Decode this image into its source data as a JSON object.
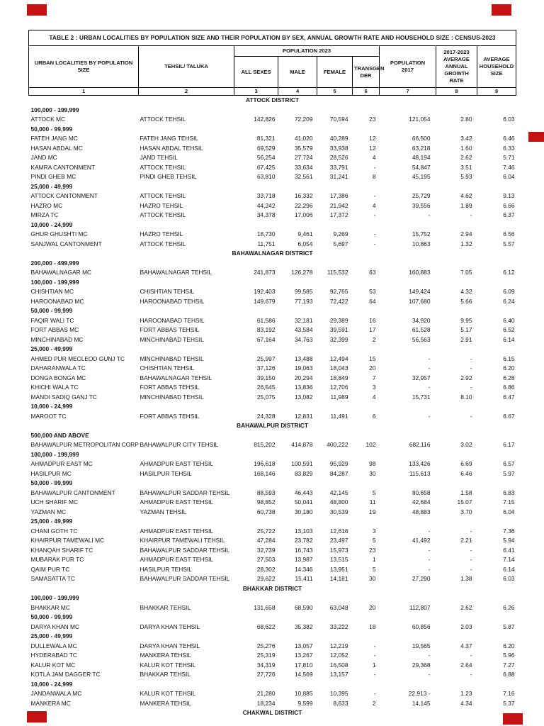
{
  "decorations": {
    "redaction_color": "#c51212"
  },
  "table": {
    "title": "TABLE 2 : URBAN LOCALITIES BY POPULATION SIZE AND THEIR POPULATION BY SEX, ANNUAL GROWTH RATE AND HOUSEHOLD SIZE : CENSUS-2023",
    "header": {
      "locality": "URBAN LOCALITIES BY POPULATION SIZE",
      "tehsil": "TEHSIL/ TALUKA",
      "pop2023": "POPULATION 2023",
      "all_sexes": "ALL SEXES",
      "male": "MALE",
      "female": "FEMALE",
      "transgender": "TRANSGEN DER",
      "pop2017": "POPULATION 2017",
      "growth": "2017-2023 AVERAGE ANNUAL GROWTH RATE",
      "household": "AVERAGE HOUSEHOLD SIZE"
    },
    "col_numbers": [
      "1",
      "2",
      "3",
      "4",
      "5",
      "6",
      "7",
      "8",
      "9"
    ],
    "rows": [
      {
        "type": "district",
        "label": "ATTOCK DISTRICT"
      },
      {
        "type": "group",
        "label": "100,000 - 199,999"
      },
      {
        "type": "data",
        "name": "ATTOCK MC",
        "tehsil": "ATTOCK TEHSIL",
        "all": "142,826",
        "male": "72,209",
        "female": "70,594",
        "trans": "23",
        "pop2017": "121,054",
        "growth": "2.80",
        "hh": "6.03"
      },
      {
        "type": "group",
        "label": "50,000 - 99,999"
      },
      {
        "type": "data",
        "name": "FATEH JANG MC",
        "tehsil": "FATEH JANG TEHSIL",
        "all": "81,321",
        "male": "41,020",
        "female": "40,289",
        "trans": "12",
        "pop2017": "66,500",
        "growth": "3.42",
        "hh": "6.46"
      },
      {
        "type": "data",
        "name": "HASAN ABDAL MC",
        "tehsil": "HASAN ABDAL TEHSIL",
        "all": "69,529",
        "male": "35,579",
        "female": "33,938",
        "trans": "12",
        "pop2017": "63,218",
        "growth": "1.60",
        "hh": "6.33"
      },
      {
        "type": "data",
        "name": "JAND MC",
        "tehsil": "JAND TEHSIL",
        "all": "56,254",
        "male": "27,724",
        "female": "28,526",
        "trans": "4",
        "pop2017": "48,194",
        "growth": "2.62",
        "hh": "5.71"
      },
      {
        "type": "data",
        "name": "KAMRA CANTONMENT",
        "tehsil": "ATTOCK TEHSIL",
        "all": "67,425",
        "male": "33,634",
        "female": "33,791",
        "trans": "-",
        "pop2017": "54,847",
        "growth": "3.51",
        "hh": "7.46"
      },
      {
        "type": "data",
        "name": "PINDI GHEB MC",
        "tehsil": "PINDI GHEB TEHSIL",
        "all": "63,810",
        "male": "32,561",
        "female": "31,241",
        "trans": "8",
        "pop2017": "45,195",
        "growth": "5.93",
        "hh": "6.04"
      },
      {
        "type": "group",
        "label": "25,000 - 49,999"
      },
      {
        "type": "data",
        "name": "ATTOCK CANTONMENT",
        "tehsil": "ATTOCK TEHSIL",
        "all": "33,718",
        "male": "16,332",
        "female": "17,386",
        "trans": "-",
        "pop2017": "25,729",
        "growth": "4.62",
        "hh": "9.13"
      },
      {
        "type": "data",
        "name": "HAZRO MC",
        "tehsil": "HAZRO TEHSIL",
        "all": "44,242",
        "male": "22,296",
        "female": "21,942",
        "trans": "4",
        "pop2017": "39,556",
        "growth": "1.89",
        "hh": "6.66"
      },
      {
        "type": "data",
        "name": "MIRZA TC",
        "tehsil": "ATTOCK TEHSIL",
        "all": "34,378",
        "male": "17,006",
        "female": "17,372",
        "trans": "-",
        "pop2017": "-",
        "growth": "-",
        "hh": "6.37"
      },
      {
        "type": "group",
        "label": "10,000 - 24,999"
      },
      {
        "type": "data",
        "name": "GHUR GHUSHTI MC",
        "tehsil": "HAZRO TEHSIL",
        "all": "18,730",
        "male": "9,461",
        "female": "9,269",
        "trans": "-",
        "pop2017": "15,752",
        "growth": "2.94",
        "hh": "6.56"
      },
      {
        "type": "data",
        "name": "SANJWAL CANTONMENT",
        "tehsil": "ATTOCK TEHSIL",
        "all": "11,751",
        "male": "6,054",
        "female": "5,697",
        "trans": "-",
        "pop2017": "10,863",
        "growth": "1.32",
        "hh": "5.57"
      },
      {
        "type": "district",
        "label": "BAHAWALNAGAR DISTRICT"
      },
      {
        "type": "group",
        "label": "200,000 - 499,999"
      },
      {
        "type": "data",
        "name": "BAHAWALNAGAR MC",
        "tehsil": "BAHAWALNAGAR TEHSIL",
        "all": "241,873",
        "male": "126,278",
        "female": "115,532",
        "trans": "63",
        "pop2017": "160,883",
        "growth": "7.05",
        "hh": "6.12"
      },
      {
        "type": "group",
        "label": "100,000 - 199,999"
      },
      {
        "type": "data",
        "name": "CHISHTIAN MC",
        "tehsil": "CHISHTIAN TEHSIL",
        "all": "192,403",
        "male": "99,585",
        "female": "92,765",
        "trans": "53",
        "pop2017": "149,424",
        "growth": "4.32",
        "hh": "6.09"
      },
      {
        "type": "data",
        "name": "HAROONABAD MC",
        "tehsil": "HAROONABAD TEHSIL",
        "all": "149,679",
        "male": "77,193",
        "female": "72,422",
        "trans": "64",
        "pop2017": "107,680",
        "growth": "5.66",
        "hh": "6.24"
      },
      {
        "type": "group",
        "label": "50,000 - 99,999"
      },
      {
        "type": "data",
        "name": "FAQIR WALI TC",
        "tehsil": "HAROONABAD TEHSIL",
        "all": "61,586",
        "male": "32,181",
        "female": "29,389",
        "trans": "16",
        "pop2017": "34,920",
        "growth": "9.95",
        "hh": "6.40"
      },
      {
        "type": "data",
        "name": "FORT ABBAS MC",
        "tehsil": "FORT ABBAS TEHSIL",
        "all": "83,192",
        "male": "43,584",
        "female": "39,591",
        "trans": "17",
        "pop2017": "61,528",
        "growth": "5.17",
        "hh": "6.52"
      },
      {
        "type": "data",
        "name": "MINCHINABAD MC",
        "tehsil": "MINCHINABAD TEHSIL",
        "all": "67,164",
        "male": "34,763",
        "female": "32,399",
        "trans": "2",
        "pop2017": "56,563",
        "growth": "2.91",
        "hh": "6.14"
      },
      {
        "type": "group",
        "label": "25,000 - 49,999"
      },
      {
        "type": "data",
        "name": "AHMED PUR MECLEOD GUNJ TC",
        "tehsil": "MINCHINABAD TEHSIL",
        "all": "25,997",
        "male": "13,488",
        "female": "12,494",
        "trans": "15",
        "pop2017": "-",
        "growth": "-",
        "hh": "6.15"
      },
      {
        "type": "data",
        "name": "DAHARANWALA TC",
        "tehsil": "CHISHTIAN TEHSIL",
        "all": "37,126",
        "male": "19,063",
        "female": "18,043",
        "trans": "20",
        "pop2017": "-",
        "growth": "-",
        "hh": "6.20"
      },
      {
        "type": "data",
        "name": "DONGA BONGA MC",
        "tehsil": "BAHAWALNAGAR TEHSIL",
        "all": "39,150",
        "male": "20,294",
        "female": "18,849",
        "trans": "7",
        "pop2017": "32,957",
        "growth": "2.92",
        "hh": "6.28"
      },
      {
        "type": "data",
        "name": "KHICHI WALA TC",
        "tehsil": "FORT ABBAS TEHSIL",
        "all": "26,545",
        "male": "13,836",
        "female": "12,706",
        "trans": "3",
        "pop2017": "-",
        "growth": "-",
        "hh": "6.86"
      },
      {
        "type": "data",
        "name": "MANDI SADIQ GANJ TC",
        "tehsil": "MINCHINABAD TEHSIL",
        "all": "25,075",
        "male": "13,082",
        "female": "11,989",
        "trans": "4",
        "pop2017": "15,731",
        "growth": "8.10",
        "hh": "6.47"
      },
      {
        "type": "group",
        "label": "10,000 - 24,999"
      },
      {
        "type": "data",
        "name": "MAROOT TC",
        "tehsil": "FORT ABBAS TEHSIL",
        "all": "24,328",
        "male": "12,831",
        "female": "11,491",
        "trans": "6",
        "pop2017": "-",
        "growth": "-",
        "hh": "6.67"
      },
      {
        "type": "district",
        "label": "BAHAWALPUR DISTRICT"
      },
      {
        "type": "group",
        "label": "500,000 AND ABOVE"
      },
      {
        "type": "data",
        "name": "BAHAWALPUR METROPOLITAN CORPOR",
        "tehsil": "BAHAWALPUR CITY TEHSIL",
        "all": "815,202",
        "male": "414,878",
        "female": "400,222",
        "trans": "102",
        "pop2017": "682,116",
        "growth": "3.02",
        "hh": "6.17"
      },
      {
        "type": "group",
        "label": "100,000 - 199,999"
      },
      {
        "type": "data",
        "name": "AHMADPUR EAST MC",
        "tehsil": "AHMADPUR EAST TEHSIL",
        "all": "196,618",
        "male": "100,591",
        "female": "95,929",
        "trans": "98",
        "pop2017": "133,426",
        "growth": "6.69",
        "hh": "6.57"
      },
      {
        "type": "data",
        "name": "HASILPUR MC",
        "tehsil": "HASILPUR TEHSIL",
        "all": "168,146",
        "male": "83,829",
        "female": "84,287",
        "trans": "30",
        "pop2017": "115,613",
        "growth": "6.46",
        "hh": "5.97"
      },
      {
        "type": "group",
        "label": "50,000 - 99,999"
      },
      {
        "type": "data",
        "name": "BAHAWALPUR CANTONMENT",
        "tehsil": "BAHAWALPUR SADDAR TEHSIL",
        "all": "88,593",
        "male": "46,443",
        "female": "42,145",
        "trans": "5",
        "pop2017": "80,658",
        "growth": "1.58",
        "hh": "6.83"
      },
      {
        "type": "data",
        "name": "UCH SHARIF MC",
        "tehsil": "AHMADPUR EAST TEHSIL",
        "all": "98,852",
        "male": "50,041",
        "female": "48,800",
        "trans": "11",
        "pop2017": "42,684",
        "growth": "15.07",
        "hh": "7.15"
      },
      {
        "type": "data",
        "name": "YAZMAN MC",
        "tehsil": "YAZMAN TEHSIL",
        "all": "60,738",
        "male": "30,180",
        "female": "30,539",
        "trans": "19",
        "pop2017": "48,883",
        "growth": "3.70",
        "hh": "6.04"
      },
      {
        "type": "group",
        "label": "25,000 - 49,999"
      },
      {
        "type": "data",
        "name": "CHANI GOTH TC",
        "tehsil": "AHMADPUR EAST TEHSIL",
        "all": "25,722",
        "male": "13,103",
        "female": "12,616",
        "trans": "3",
        "pop2017": "-",
        "growth": "-",
        "hh": "7.36"
      },
      {
        "type": "data",
        "name": "KHAIRPUR TAMEWALI MC",
        "tehsil": "KHAIRPUR TAMEWALI TEHSIL",
        "all": "47,284",
        "male": "23,782",
        "female": "23,497",
        "trans": "5",
        "pop2017": "41,492",
        "growth": "2.21",
        "hh": "5.94"
      },
      {
        "type": "data",
        "name": "KHANQAH SHARIF TC",
        "tehsil": "BAHAWALPUR SADDAR TEHSIL",
        "all": "32,739",
        "male": "16,743",
        "female": "15,973",
        "trans": "23",
        "pop2017": "-",
        "growth": "-",
        "hh": "6.41"
      },
      {
        "type": "data",
        "name": "MUBARAK PUR TC",
        "tehsil": "AHMADPUR EAST TEHSIL",
        "all": "27,503",
        "male": "13,987",
        "female": "13,515",
        "trans": "1",
        "pop2017": "-",
        "growth": "-",
        "hh": "7.14"
      },
      {
        "type": "data",
        "name": "QAIM PUR TC",
        "tehsil": "HASILPUR TEHSIL",
        "all": "28,302",
        "male": "14,346",
        "female": "13,951",
        "trans": "5",
        "pop2017": "-",
        "growth": "-",
        "hh": "6.14"
      },
      {
        "type": "data",
        "name": "SAMASATTA TC",
        "tehsil": "BAHAWALPUR SADDAR TEHSIL",
        "all": "29,622",
        "male": "15,411",
        "female": "14,181",
        "trans": "30",
        "pop2017": "27,290",
        "growth": "1.38",
        "hh": "6.03"
      },
      {
        "type": "district",
        "label": "BHAKKAR DISTRICT"
      },
      {
        "type": "group",
        "label": "100,000 - 199,999"
      },
      {
        "type": "data",
        "name": "BHAKKAR MC",
        "tehsil": "BHAKKAR TEHSIL",
        "all": "131,658",
        "male": "68,590",
        "female": "63,048",
        "trans": "20",
        "pop2017": "112,807",
        "growth": "2.62",
        "hh": "6.26"
      },
      {
        "type": "group",
        "label": "50,000 - 99,999"
      },
      {
        "type": "data",
        "name": "DARYA KHAN MC",
        "tehsil": "DARYA KHAN TEHSIL",
        "all": "68,622",
        "male": "35,382",
        "female": "33,222",
        "trans": "18",
        "pop2017": "60,856",
        "growth": "2.03",
        "hh": "5.87"
      },
      {
        "type": "group",
        "label": "25,000 - 49,999"
      },
      {
        "type": "data",
        "name": "DULLEWALA MC",
        "tehsil": "DARYA KHAN TEHSIL",
        "all": "25,276",
        "male": "13,057",
        "female": "12,219",
        "trans": "-",
        "pop2017": "19,565",
        "growth": "4.37",
        "hh": "6.20"
      },
      {
        "type": "data",
        "name": "HYDERABAD TC",
        "tehsil": "MANKERA TEHSIL",
        "all": "25,319",
        "male": "13,267",
        "female": "12,052",
        "trans": "-",
        "pop2017": "-",
        "growth": "-",
        "hh": "5.96"
      },
      {
        "type": "data",
        "name": "KALUR KOT MC",
        "tehsil": "KALUR KOT TEHSIL",
        "all": "34,319",
        "male": "17,810",
        "female": "16,508",
        "trans": "1",
        "pop2017": "29,368",
        "growth": "2.64",
        "hh": "7.27"
      },
      {
        "type": "data",
        "name": "KOTLA JAM DAGGER TC",
        "tehsil": "BHAKKAR TEHSIL",
        "all": "27,726",
        "male": "14,569",
        "female": "13,157",
        "trans": "-",
        "pop2017": "-",
        "growth": "-",
        "hh": "6.88"
      },
      {
        "type": "group",
        "label": "10,000 - 24,999"
      },
      {
        "type": "data",
        "name": "JANDANWALA MC",
        "tehsil": "KALUR KOT TEHSIL",
        "all": "21,280",
        "male": "10,885",
        "female": "10,395",
        "trans": "-",
        "pop2017": "22,913 -",
        "growth": "1.23",
        "hh": "7.16"
      },
      {
        "type": "data",
        "name": "MANKERA MC",
        "tehsil": "MANKERA TEHSIL",
        "all": "18,234",
        "male": "9,599",
        "female": "8,633",
        "trans": "2",
        "pop2017": "14,145",
        "growth": "4.34",
        "hh": "5.37"
      },
      {
        "type": "district",
        "label": "CHAKWAL DISTRICT"
      }
    ]
  }
}
